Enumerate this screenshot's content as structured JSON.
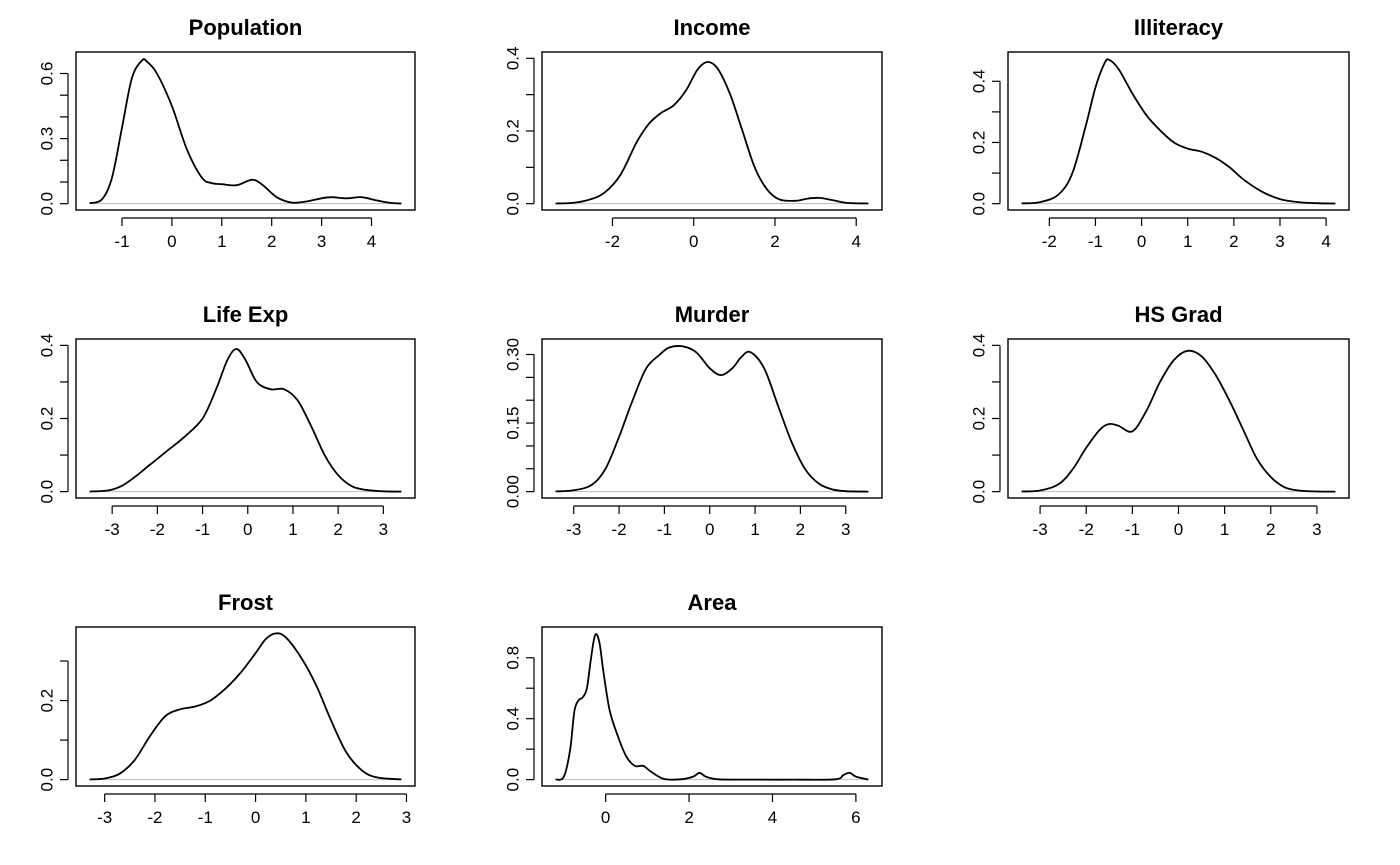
{
  "chart_data": [
    {
      "type": "line",
      "title": "Population",
      "xlim": [
        -1.65,
        4.6
      ],
      "ylim": [
        0,
        0.67
      ],
      "xticks": [
        -1,
        0,
        1,
        2,
        3,
        4
      ],
      "xtick_labels": [
        "-1",
        "0",
        "1",
        "2",
        "3",
        "4"
      ],
      "yticks": [
        0,
        0.1,
        0.2,
        0.3,
        0.4,
        0.5,
        0.6
      ],
      "ytick_labels": [
        "0.0",
        "",
        "",
        "0.3",
        "",
        "",
        "0.6"
      ],
      "x": [
        -1.65,
        -1.4,
        -1.2,
        -1.0,
        -0.8,
        -0.6,
        -0.5,
        -0.3,
        0.0,
        0.3,
        0.6,
        0.8,
        1.0,
        1.3,
        1.6,
        1.8,
        2.1,
        2.4,
        2.7,
        3.0,
        3.2,
        3.5,
        3.8,
        4.1,
        4.4,
        4.6
      ],
      "y": [
        0.002,
        0.02,
        0.12,
        0.35,
        0.58,
        0.66,
        0.655,
        0.6,
        0.45,
        0.25,
        0.12,
        0.095,
        0.09,
        0.085,
        0.11,
        0.09,
        0.03,
        0.005,
        0.01,
        0.025,
        0.03,
        0.025,
        0.03,
        0.015,
        0.003,
        0.001
      ]
    },
    {
      "type": "line",
      "title": "Income",
      "xlim": [
        -3.4,
        4.3
      ],
      "ylim": [
        0,
        0.4
      ],
      "xticks": [
        -2,
        0,
        2,
        4
      ],
      "xtick_labels": [
        "-2",
        "0",
        "2",
        "4"
      ],
      "yticks": [
        0,
        0.1,
        0.2,
        0.3,
        0.4
      ],
      "ytick_labels": [
        "0.0",
        "",
        "0.2",
        "",
        "0.4"
      ],
      "x": [
        -3.4,
        -3.0,
        -2.6,
        -2.2,
        -1.8,
        -1.4,
        -1.1,
        -0.8,
        -0.5,
        -0.2,
        0.1,
        0.35,
        0.6,
        0.9,
        1.2,
        1.5,
        1.8,
        2.1,
        2.5,
        2.8,
        3.1,
        3.4,
        3.8,
        4.3
      ],
      "y": [
        0.0005,
        0.002,
        0.01,
        0.03,
        0.08,
        0.17,
        0.22,
        0.25,
        0.27,
        0.31,
        0.37,
        0.39,
        0.37,
        0.3,
        0.2,
        0.1,
        0.04,
        0.012,
        0.008,
        0.014,
        0.016,
        0.01,
        0.002,
        0.0005
      ]
    },
    {
      "type": "line",
      "title": "Illiteracy",
      "xlim": [
        -2.6,
        4.2
      ],
      "ylim": [
        0,
        0.475
      ],
      "xticks": [
        -2,
        -1,
        0,
        1,
        2,
        3,
        4
      ],
      "xtick_labels": [
        "-2",
        "-1",
        "0",
        "1",
        "2",
        "3",
        "4"
      ],
      "yticks": [
        0,
        0.1,
        0.2,
        0.3,
        0.4
      ],
      "ytick_labels": [
        "0.0",
        "",
        "0.2",
        "",
        "0.4"
      ],
      "x": [
        -2.6,
        -2.2,
        -1.8,
        -1.5,
        -1.2,
        -1.0,
        -0.8,
        -0.7,
        -0.5,
        -0.2,
        0.1,
        0.4,
        0.7,
        1.0,
        1.3,
        1.6,
        1.9,
        2.2,
        2.6,
        3.0,
        3.4,
        3.8,
        4.2
      ],
      "y": [
        0.001,
        0.005,
        0.03,
        0.1,
        0.26,
        0.38,
        0.46,
        0.47,
        0.44,
        0.36,
        0.29,
        0.24,
        0.2,
        0.18,
        0.17,
        0.15,
        0.12,
        0.08,
        0.04,
        0.015,
        0.005,
        0.0015,
        0.0005
      ]
    },
    {
      "type": "line",
      "title": "Life Exp",
      "xlim": [
        -3.5,
        3.4
      ],
      "ylim": [
        0,
        0.4
      ],
      "xticks": [
        -3,
        -2,
        -1,
        0,
        1,
        2,
        3
      ],
      "xtick_labels": [
        "-3",
        "-2",
        "-1",
        "0",
        "1",
        "2",
        "3"
      ],
      "yticks": [
        0,
        0.1,
        0.2,
        0.3,
        0.4
      ],
      "ytick_labels": [
        "0.0",
        "",
        "0.2",
        "",
        "0.4"
      ],
      "x": [
        -3.5,
        -3.1,
        -2.8,
        -2.5,
        -2.2,
        -1.8,
        -1.4,
        -1.0,
        -0.7,
        -0.45,
        -0.25,
        -0.05,
        0.2,
        0.5,
        0.8,
        1.1,
        1.4,
        1.7,
        2.0,
        2.3,
        2.6,
        3.0,
        3.4
      ],
      "y": [
        0.0005,
        0.003,
        0.015,
        0.04,
        0.07,
        0.11,
        0.15,
        0.2,
        0.28,
        0.36,
        0.39,
        0.36,
        0.3,
        0.28,
        0.28,
        0.25,
        0.18,
        0.1,
        0.045,
        0.015,
        0.005,
        0.001,
        0.0002
      ]
    },
    {
      "type": "line",
      "title": "Murder",
      "xlim": [
        -3.4,
        3.5
      ],
      "ylim": [
        0,
        0.32
      ],
      "xticks": [
        -3,
        -2,
        -1,
        0,
        1,
        2,
        3
      ],
      "xtick_labels": [
        "-3",
        "-2",
        "-1",
        "0",
        "1",
        "2",
        "3"
      ],
      "yticks": [
        0,
        0.05,
        0.1,
        0.15,
        0.2,
        0.25,
        0.3
      ],
      "ytick_labels": [
        "0.00",
        "",
        "",
        "0.15",
        "",
        "",
        "0.30"
      ],
      "x": [
        -3.4,
        -3.0,
        -2.6,
        -2.3,
        -2.0,
        -1.7,
        -1.4,
        -1.1,
        -0.9,
        -0.6,
        -0.3,
        0.0,
        0.25,
        0.5,
        0.7,
        0.9,
        1.2,
        1.5,
        1.8,
        2.1,
        2.4,
        2.7,
        3.0,
        3.5
      ],
      "y": [
        0.0005,
        0.003,
        0.015,
        0.05,
        0.12,
        0.2,
        0.27,
        0.3,
        0.315,
        0.318,
        0.305,
        0.27,
        0.255,
        0.27,
        0.295,
        0.305,
        0.27,
        0.19,
        0.11,
        0.05,
        0.018,
        0.005,
        0.001,
        0.0001
      ]
    },
    {
      "type": "line",
      "title": "HS Grad",
      "xlim": [
        -3.4,
        3.4
      ],
      "ylim": [
        0,
        0.4
      ],
      "xticks": [
        -3,
        -2,
        -1,
        0,
        1,
        2,
        3
      ],
      "xtick_labels": [
        "-3",
        "-2",
        "-1",
        "0",
        "1",
        "2",
        "3"
      ],
      "yticks": [
        0,
        0.1,
        0.2,
        0.3,
        0.4
      ],
      "ytick_labels": [
        "0.0",
        "",
        "0.2",
        "",
        "0.4"
      ],
      "x": [
        -3.4,
        -3.0,
        -2.6,
        -2.3,
        -2.0,
        -1.7,
        -1.5,
        -1.3,
        -1.0,
        -0.7,
        -0.4,
        -0.1,
        0.2,
        0.5,
        0.8,
        1.1,
        1.4,
        1.7,
        2.0,
        2.3,
        2.6,
        3.0,
        3.4
      ],
      "y": [
        0.0005,
        0.003,
        0.02,
        0.06,
        0.12,
        0.17,
        0.185,
        0.18,
        0.165,
        0.22,
        0.3,
        0.36,
        0.385,
        0.37,
        0.32,
        0.25,
        0.17,
        0.09,
        0.04,
        0.012,
        0.003,
        0.0005,
        0.0001
      ]
    },
    {
      "type": "line",
      "title": "Frost",
      "xlim": [
        -3.3,
        2.9
      ],
      "ylim": [
        0,
        0.37
      ],
      "xticks": [
        -3,
        -2,
        -1,
        0,
        1,
        2,
        3
      ],
      "xtick_labels": [
        "-3",
        "-2",
        "-1",
        "0",
        "1",
        "2",
        "3"
      ],
      "yticks": [
        0,
        0.1,
        0.2,
        0.3
      ],
      "ytick_labels": [
        "0.0",
        "",
        "0.2",
        ""
      ],
      "x": [
        -3.3,
        -3.0,
        -2.7,
        -2.4,
        -2.1,
        -1.8,
        -1.5,
        -1.2,
        -0.9,
        -0.6,
        -0.3,
        0.0,
        0.2,
        0.4,
        0.6,
        0.9,
        1.2,
        1.5,
        1.8,
        2.1,
        2.4,
        2.9
      ],
      "y": [
        0.0005,
        0.003,
        0.015,
        0.05,
        0.11,
        0.16,
        0.178,
        0.185,
        0.2,
        0.23,
        0.27,
        0.32,
        0.355,
        0.37,
        0.36,
        0.31,
        0.24,
        0.15,
        0.07,
        0.025,
        0.006,
        0.0005
      ]
    },
    {
      "type": "line",
      "title": "Area",
      "xlim": [
        -1.2,
        6.3
      ],
      "ylim": [
        0,
        0.96
      ],
      "xticks": [
        0,
        2,
        4,
        6
      ],
      "xtick_labels": [
        "0",
        "2",
        "4",
        "6"
      ],
      "yticks": [
        0,
        0.2,
        0.4,
        0.6,
        0.8
      ],
      "ytick_labels": [
        "0.0",
        "",
        "0.4",
        "",
        "0.8"
      ],
      "x": [
        -1.2,
        -1.0,
        -0.85,
        -0.75,
        -0.65,
        -0.55,
        -0.45,
        -0.35,
        -0.25,
        -0.15,
        -0.05,
        0.1,
        0.3,
        0.5,
        0.7,
        0.9,
        1.1,
        1.4,
        1.8,
        2.1,
        2.25,
        2.4,
        2.7,
        3.5,
        4.5,
        5.5,
        5.7,
        5.85,
        6.0,
        6.3
      ],
      "y": [
        0.0,
        0.02,
        0.2,
        0.45,
        0.52,
        0.54,
        0.6,
        0.8,
        0.95,
        0.9,
        0.7,
        0.45,
        0.28,
        0.15,
        0.09,
        0.09,
        0.05,
        0.005,
        0.002,
        0.02,
        0.045,
        0.02,
        0.002,
        0.0,
        0.0,
        0.002,
        0.03,
        0.045,
        0.02,
        0.0
      ]
    }
  ]
}
